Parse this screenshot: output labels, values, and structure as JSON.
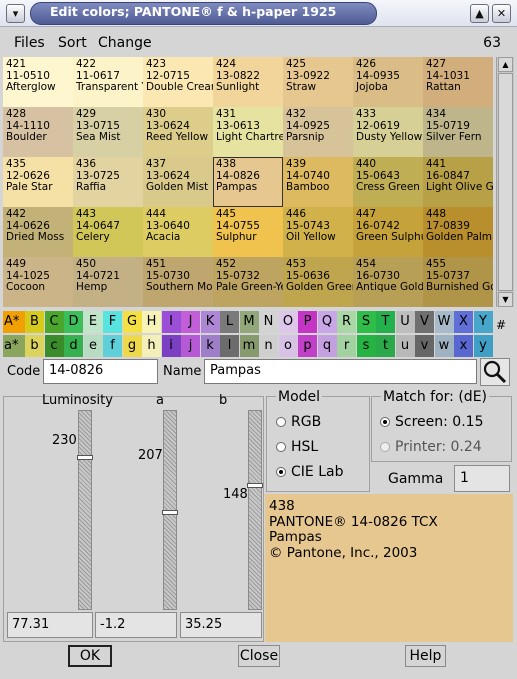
{
  "window": {
    "title": "Edit colors; PANTONE® f & h-paper 1925"
  },
  "menu": {
    "items": [
      "Files",
      "Sort",
      "Change"
    ],
    "count": "63"
  },
  "grid": {
    "cells": [
      {
        "num": "421",
        "code": "11-0510",
        "name": "Afterglow",
        "color": "#fdf6cf"
      },
      {
        "num": "422",
        "code": "11-0617",
        "name": "Transparent Yellow",
        "color": "#fdf3c8"
      },
      {
        "num": "423",
        "code": "12-0715",
        "name": "Double Cream",
        "color": "#fbe7b2"
      },
      {
        "num": "424",
        "code": "13-0822",
        "name": "Sunlight",
        "color": "#f2d59a"
      },
      {
        "num": "425",
        "code": "13-0922",
        "name": "Straw",
        "color": "#e6c78f"
      },
      {
        "num": "426",
        "code": "14-0935",
        "name": "Jojoba",
        "color": "#d9bc86"
      },
      {
        "num": "427",
        "code": "14-1031",
        "name": "Rattan",
        "color": "#d1ae7c"
      },
      {
        "num": "428",
        "code": "14-1110",
        "name": "Boulder",
        "color": "#d6c2a2"
      },
      {
        "num": "429",
        "code": "13-0715",
        "name": "Sea Mist",
        "color": "#d8d0a5"
      },
      {
        "num": "430",
        "code": "13-0624",
        "name": "Reed Yellow",
        "color": "#dccd8a"
      },
      {
        "num": "431",
        "code": "13-0613",
        "name": "Light Chartreuse",
        "color": "#e6e2a0"
      },
      {
        "num": "432",
        "code": "14-0925",
        "name": "Parsnip",
        "color": "#d7c399"
      },
      {
        "num": "433",
        "code": "12-0619",
        "name": "Dusty Yellow",
        "color": "#d7d096"
      },
      {
        "num": "434",
        "code": "15-0719",
        "name": "Silver Fern",
        "color": "#bfb58b"
      },
      {
        "num": "435",
        "code": "12-0626",
        "name": "Pale Star",
        "color": "#f5e0a6"
      },
      {
        "num": "436",
        "code": "13-0725",
        "name": "Raffia",
        "color": "#e3d3a1"
      },
      {
        "num": "437",
        "code": "13-0624",
        "name": "Golden Mist",
        "color": "#d9c98a"
      },
      {
        "num": "438",
        "code": "14-0826",
        "name": "Pampas",
        "color": "#e6c790"
      },
      {
        "num": "439",
        "code": "14-0740",
        "name": "Bamboo",
        "color": "#ddb95f"
      },
      {
        "num": "440",
        "code": "15-0643",
        "name": "Cress Green",
        "color": "#bfae54"
      },
      {
        "num": "441",
        "code": "16-0847",
        "name": "Light Olive Green",
        "color": "#b8a046"
      },
      {
        "num": "442",
        "code": "14-0626",
        "name": "Dried Moss",
        "color": "#c3b277"
      },
      {
        "num": "443",
        "code": "14-0647",
        "name": "Celery",
        "color": "#d1c759"
      },
      {
        "num": "444",
        "code": "13-0640",
        "name": "Acacia",
        "color": "#dccc62"
      },
      {
        "num": "445",
        "code": "14-0755",
        "name": "Sulphur",
        "color": "#f0c34f"
      },
      {
        "num": "446",
        "code": "15-0743",
        "name": "Oil Yellow",
        "color": "#d1b24a"
      },
      {
        "num": "447",
        "code": "16-0742",
        "name": "Green Sulphur",
        "color": "#c6a23b"
      },
      {
        "num": "448",
        "code": "17-0839",
        "name": "Golden Palm",
        "color": "#b88f2c"
      },
      {
        "num": "449",
        "code": "14-1025",
        "name": "Cocoon",
        "color": "#cbb487"
      },
      {
        "num": "450",
        "code": "14-0721",
        "name": "Hemp",
        "color": "#c3b185"
      },
      {
        "num": "451",
        "code": "15-0730",
        "name": "Southern Moss",
        "color": "#bfa66e"
      },
      {
        "num": "452",
        "code": "15-0732",
        "name": "Pale Green-Yellow",
        "color": "#bda461"
      },
      {
        "num": "453",
        "code": "15-0636",
        "name": "Golden Green",
        "color": "#bfa54e"
      },
      {
        "num": "454",
        "code": "16-0730",
        "name": "Antique Gold",
        "color": "#b89f56"
      },
      {
        "num": "455",
        "code": "15-0737",
        "name": "Burnished Gold",
        "color": "#b09447"
      }
    ]
  },
  "letters_upper": {
    "head": "A*",
    "cells": [
      {
        "t": "B",
        "c": "#d6ca1d"
      },
      {
        "t": "C",
        "c": "#4aa62d"
      },
      {
        "t": "D",
        "c": "#3bbf58"
      },
      {
        "t": "E",
        "c": "#bfe6c9"
      },
      {
        "t": "F",
        "c": "#58e2e0"
      },
      {
        "t": "G",
        "c": "#f5e043"
      },
      {
        "t": "H",
        "c": "#f7f3b6"
      },
      {
        "t": "I",
        "c": "#9a4fd6"
      },
      {
        "t": "J",
        "c": "#c35ed9"
      },
      {
        "t": "K",
        "c": "#ae86d6"
      },
      {
        "t": "L",
        "c": "#7a7a7a"
      },
      {
        "t": "M",
        "c": "#92a77a"
      },
      {
        "t": "N",
        "c": "#d3d3d3"
      },
      {
        "t": "O",
        "c": "#dcc6ea"
      },
      {
        "t": "P",
        "c": "#c435c6"
      },
      {
        "t": "Q",
        "c": "#c9a6e6"
      },
      {
        "t": "R",
        "c": "#a9d7a6"
      },
      {
        "t": "S",
        "c": "#2fbd4a"
      },
      {
        "t": "T",
        "c": "#23b04d"
      },
      {
        "t": "U",
        "c": "#bdbdbd"
      },
      {
        "t": "V",
        "c": "#6f6f6f"
      },
      {
        "t": "W",
        "c": "#a6bac9"
      },
      {
        "t": "X",
        "c": "#5f6fd6"
      },
      {
        "t": "Y",
        "c": "#47a6c9"
      }
    ],
    "head_color": "#f0a000"
  },
  "letters_lower": {
    "head": "a*",
    "cells": [
      {
        "t": "b",
        "c": "#dcd25e"
      },
      {
        "t": "c",
        "c": "#3a8c2a"
      },
      {
        "t": "d",
        "c": "#36b14f"
      },
      {
        "t": "e",
        "c": "#b8dcc2"
      },
      {
        "t": "f",
        "c": "#5fd0da"
      },
      {
        "t": "g",
        "c": "#eed84c"
      },
      {
        "t": "h",
        "c": "#f4efba"
      },
      {
        "t": "i",
        "c": "#7b3fc1"
      },
      {
        "t": "j",
        "c": "#b55ad4"
      },
      {
        "t": "k",
        "c": "#9e7ec8"
      },
      {
        "t": "l",
        "c": "#6c6c6c"
      },
      {
        "t": "m",
        "c": "#869a6d"
      },
      {
        "t": "n",
        "c": "#cfcfcf"
      },
      {
        "t": "o",
        "c": "#d7c2e6"
      },
      {
        "t": "p",
        "c": "#c040c8"
      },
      {
        "t": "q",
        "c": "#c5a0e0"
      },
      {
        "t": "r",
        "c": "#a2d2a0"
      },
      {
        "t": "s",
        "c": "#25b344"
      },
      {
        "t": "t",
        "c": "#2aa84a"
      },
      {
        "t": "u",
        "c": "#b8b8b8"
      },
      {
        "t": "v",
        "c": "#666666"
      },
      {
        "t": "w",
        "c": "#9eb2c2"
      },
      {
        "t": "x",
        "c": "#5868d0"
      },
      {
        "t": "y",
        "c": "#3f9fc4"
      }
    ],
    "head_color": "#8aa55e"
  },
  "hash_label": "#",
  "code": {
    "label": "Code",
    "value": "14-0826"
  },
  "name": {
    "label": "Name",
    "value": "Pampas"
  },
  "sliders": {
    "labels": [
      "Luminosity",
      "a",
      "b"
    ],
    "values": [
      "230",
      "207",
      "148"
    ],
    "fields": [
      "77.31",
      "-1.2",
      "35.25"
    ],
    "levels": [
      0.773,
      0.49,
      0.63
    ]
  },
  "model": {
    "title": "Model",
    "options": [
      "RGB",
      "HSL",
      "CIE Lab"
    ],
    "selected": 2
  },
  "match": {
    "title": "Match for: (dE)",
    "screen": "Screen: 0.15",
    "printer": "Printer: 0.24"
  },
  "gamma": {
    "label": "Gamma",
    "value": "1"
  },
  "info": {
    "lines": [
      "438",
      "PANTONE® 14-0826 TCX",
      "Pampas",
      "© Pantone, Inc., 2003"
    ],
    "color": "#e6c790"
  },
  "buttons": {
    "ok": "OK",
    "close": "Close",
    "help": "Help"
  }
}
